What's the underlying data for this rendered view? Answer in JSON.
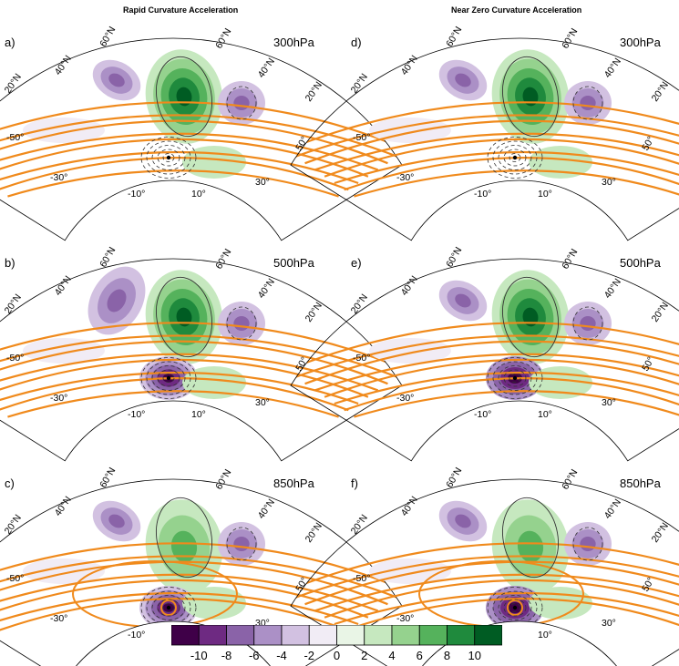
{
  "column_titles": [
    "Rapid Curvature Acceleration",
    "Near Zero Curvature Acceleration"
  ],
  "panels": [
    {
      "label": "a)",
      "level": "300hPa",
      "variant": "rapid",
      "row": 0
    },
    {
      "label": "b)",
      "level": "500hPa",
      "variant": "rapid",
      "row": 1
    },
    {
      "label": "c)",
      "level": "850hPa",
      "variant": "rapid",
      "row": 2
    },
    {
      "label": "d)",
      "level": "300hPa",
      "variant": "zero",
      "row": 0
    },
    {
      "label": "e)",
      "level": "500hPa",
      "variant": "zero",
      "row": 1
    },
    {
      "label": "f)",
      "level": "850hPa",
      "variant": "zero",
      "row": 2
    }
  ],
  "map_labels": {
    "lat_left_outer": "20°N",
    "lat_left_inner": "40°N",
    "lat_top_left": "60°N",
    "lat_top_right": "60°N",
    "lat_right_inner": "40°N",
    "lat_right_outer": "20°N",
    "lon_neg50": "-50°",
    "lon_neg30": "-30°",
    "lon_neg10": "-10°",
    "lon_10": "10°",
    "lon_30": "30°",
    "lon_50": "50°"
  },
  "colorbar": {
    "ticks": [
      "-10",
      "-8",
      "-6",
      "-4",
      "-2",
      "0",
      "2",
      "4",
      "6",
      "8",
      "10"
    ],
    "colors": [
      "#3f0048",
      "#6e2a82",
      "#8a63a8",
      "#ab90c6",
      "#d2c1e1",
      "#f1ecf5",
      "#e9f5e6",
      "#c6e8bf",
      "#95d28e",
      "#55b25c",
      "#1f8a3d",
      "#005c23"
    ]
  },
  "contour_colors": {
    "orange": "#f08a1c",
    "negative": "#333333",
    "positive": "#333333"
  }
}
